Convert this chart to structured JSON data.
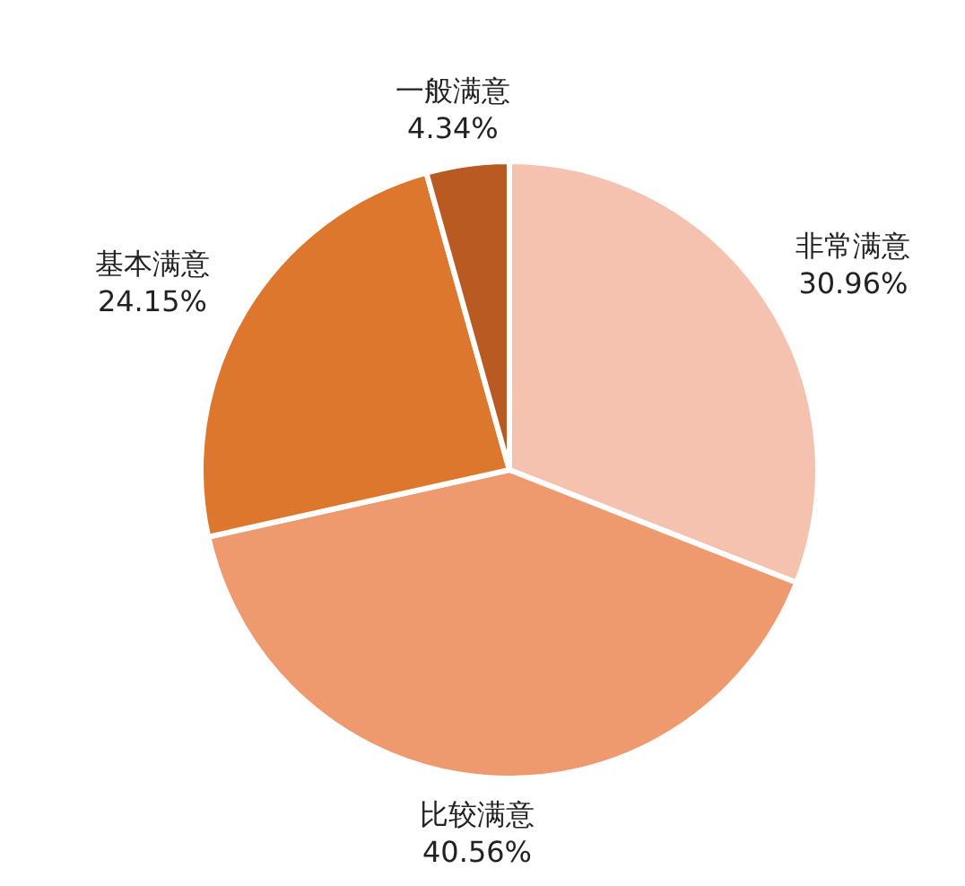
{
  "chart_data": {
    "type": "pie",
    "categories": [
      "非常满意",
      "比较满意",
      "基本满意",
      "一般满意"
    ],
    "values": [
      30.96,
      40.56,
      24.15,
      4.34
    ],
    "colors": [
      "#f5c2b0",
      "#ef9a6e",
      "#de772e",
      "#b95a22"
    ],
    "value_labels": [
      "30.96%",
      "40.56%",
      "24.15%",
      "4.34%"
    ]
  }
}
